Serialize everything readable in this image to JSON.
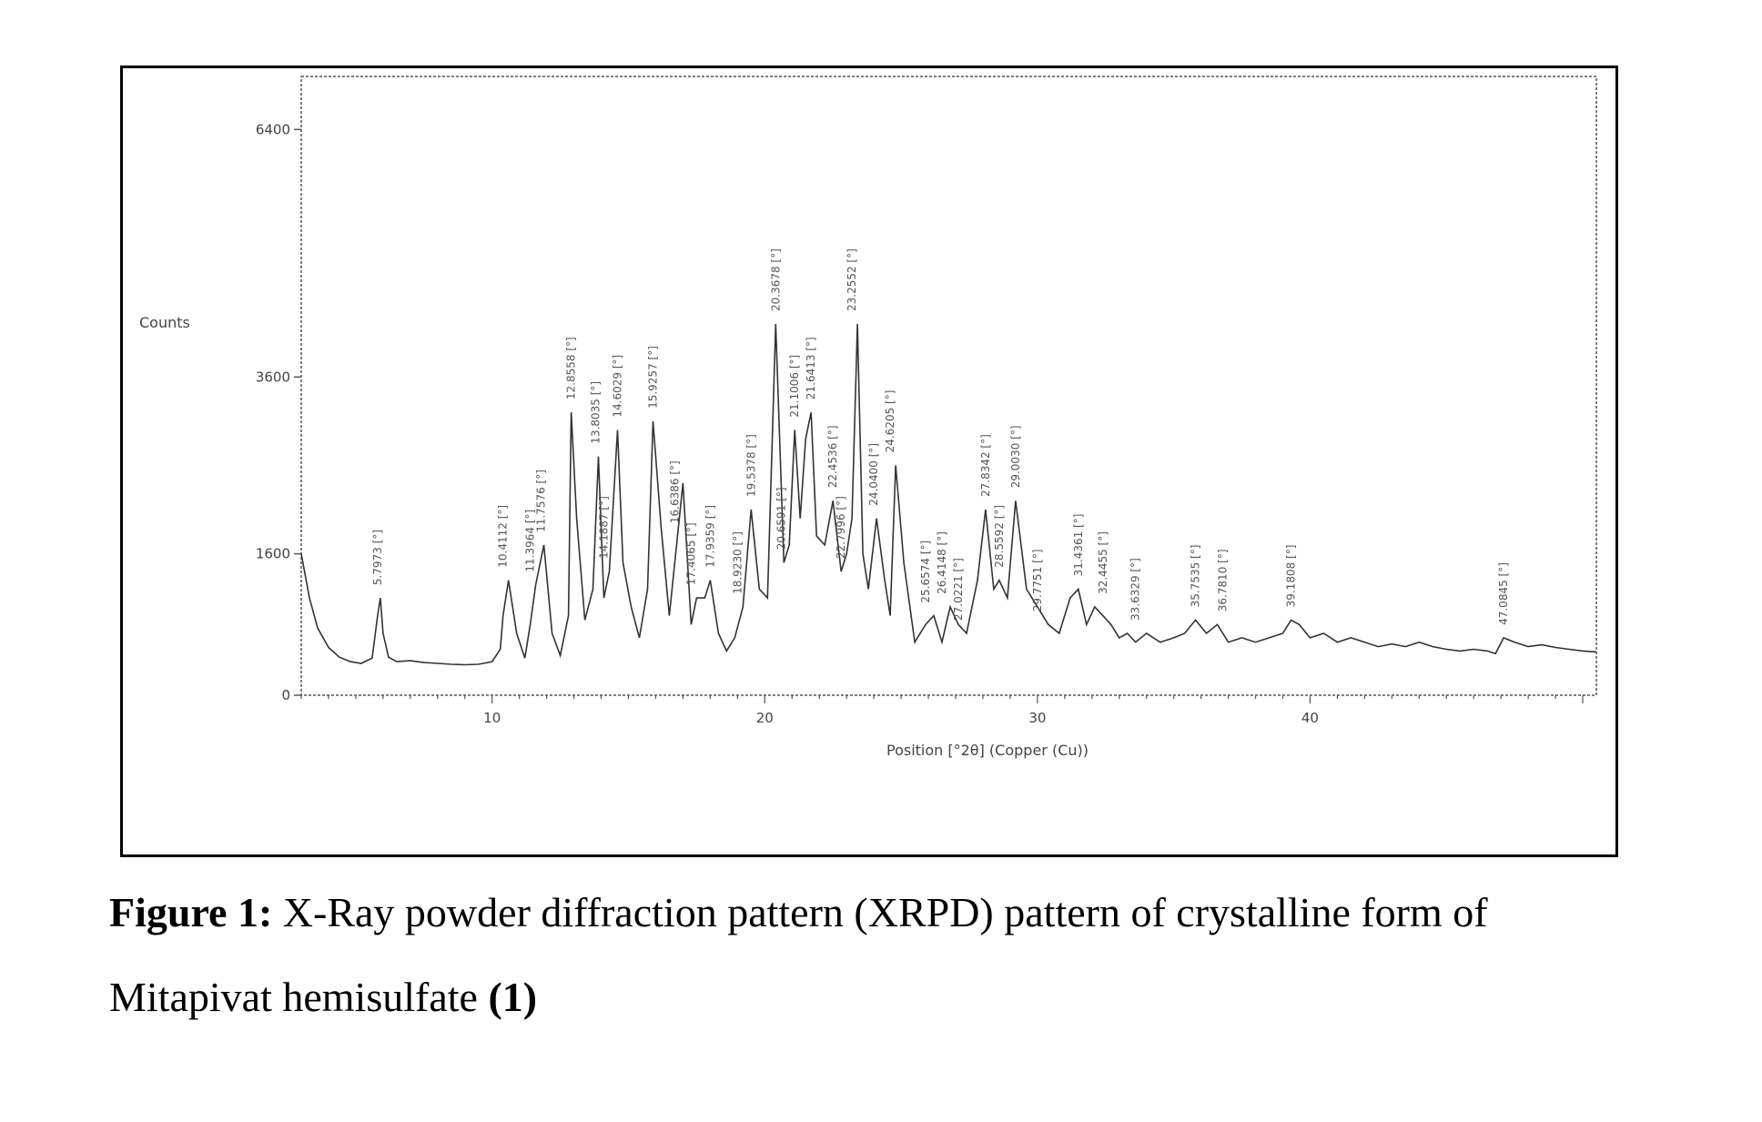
{
  "figure": {
    "caption_label": "Figure 1:",
    "caption_text": " X-Ray powder diffraction pattern (XRPD) pattern of crystalline form of",
    "caption_line2": "Mitapivat hemisulfate ",
    "caption_compound": "(1)"
  },
  "chart_data": {
    "type": "line",
    "title": "",
    "xlabel": "Position [°2θ] (Copper (Cu))",
    "ylabel": "Counts",
    "xlim": [
      3,
      50.5
    ],
    "ylim": [
      0,
      7000
    ],
    "x_ticks": [
      10,
      20,
      30,
      40
    ],
    "x_tick_labels": [
      "10",
      "20",
      "30",
      "40"
    ],
    "y_ticks": [
      0,
      1600,
      3600,
      6400
    ],
    "y_tick_labels": [
      "0",
      "1600",
      "3600",
      "6400"
    ],
    "grid": false,
    "series": [
      {
        "x": [
          3.0,
          3.3,
          3.6,
          4.0,
          4.4,
          4.8,
          5.2,
          5.6,
          5.8,
          5.9,
          6.0,
          6.2,
          6.5,
          7.0,
          7.5,
          8.0,
          8.5,
          9.0,
          9.5,
          10.0,
          10.3,
          10.4,
          10.6,
          10.9,
          11.2,
          11.4,
          11.6,
          11.9,
          12.2,
          12.5,
          12.8,
          12.9,
          13.1,
          13.4,
          13.7,
          13.9,
          14.1,
          14.3,
          14.6,
          14.8,
          15.1,
          15.4,
          15.7,
          15.9,
          16.2,
          16.5,
          16.8,
          17.0,
          17.3,
          17.5,
          17.8,
          18.0,
          18.3,
          18.6,
          18.9,
          19.2,
          19.5,
          19.8,
          20.1,
          20.4,
          20.7,
          20.9,
          21.1,
          21.3,
          21.5,
          21.7,
          21.9,
          22.2,
          22.5,
          22.8,
          23.0,
          23.2,
          23.4,
          23.6,
          23.8,
          24.1,
          24.4,
          24.6,
          24.8,
          25.1,
          25.5,
          25.9,
          26.2,
          26.5,
          26.8,
          27.1,
          27.4,
          27.8,
          28.1,
          28.4,
          28.6,
          28.9,
          29.2,
          29.6,
          30.0,
          30.4,
          30.8,
          31.2,
          31.5,
          31.8,
          32.1,
          32.4,
          32.7,
          33.0,
          33.3,
          33.6,
          34.0,
          34.5,
          35.0,
          35.4,
          35.8,
          36.2,
          36.6,
          37.0,
          37.5,
          38.0,
          38.5,
          39.0,
          39.3,
          39.6,
          40.0,
          40.5,
          41.0,
          41.5,
          42.0,
          42.5,
          43.0,
          43.5,
          44.0,
          44.5,
          45.0,
          45.5,
          46.0,
          46.5,
          46.8,
          47.1,
          47.5,
          48.0,
          48.5,
          49.0,
          49.5,
          50.0,
          50.5
        ],
        "y": [
          1600,
          1100,
          760,
          540,
          430,
          380,
          360,
          420,
          900,
          1100,
          700,
          430,
          380,
          390,
          370,
          360,
          350,
          345,
          350,
          380,
          520,
          900,
          1300,
          700,
          420,
          800,
          1250,
          1700,
          700,
          450,
          900,
          3200,
          2000,
          850,
          1200,
          2700,
          1100,
          1400,
          3000,
          1500,
          1000,
          650,
          1200,
          3100,
          1900,
          900,
          1800,
          2400,
          800,
          1100,
          1100,
          1300,
          700,
          500,
          650,
          1000,
          2100,
          1200,
          1100,
          4200,
          1500,
          1700,
          3000,
          2000,
          2900,
          3200,
          1800,
          1700,
          2200,
          1400,
          1600,
          2000,
          4200,
          1600,
          1200,
          2000,
          1300,
          900,
          2600,
          1500,
          600,
          800,
          900,
          600,
          1000,
          800,
          700,
          1300,
          2100,
          1200,
          1300,
          1100,
          2200,
          1200,
          1000,
          800,
          700,
          1100,
          1200,
          800,
          1000,
          900,
          800,
          650,
          700,
          600,
          700,
          600,
          650,
          700,
          850,
          700,
          800,
          600,
          650,
          600,
          650,
          700,
          850,
          800,
          650,
          700,
          600,
          650,
          600,
          550,
          580,
          550,
          600,
          550,
          520,
          500,
          520,
          500,
          470,
          650,
          600,
          550,
          570,
          540,
          520,
          500,
          490
        ]
      }
    ],
    "peaks": [
      {
        "x": 5.8,
        "y": 1100,
        "label": "5.7973 [°]"
      },
      {
        "x": 10.4,
        "y": 1300,
        "label": "10.4112 [°]"
      },
      {
        "x": 11.4,
        "y": 1250,
        "label": "11.3964 [°]"
      },
      {
        "x": 11.8,
        "y": 1700,
        "label": "11.7576 [°]"
      },
      {
        "x": 12.9,
        "y": 3200,
        "label": "12.8558 [°]"
      },
      {
        "x": 13.8,
        "y": 2700,
        "label": "13.8035 [°]"
      },
      {
        "x": 14.1,
        "y": 1400,
        "label": "14.1887 [°]"
      },
      {
        "x": 14.6,
        "y": 3000,
        "label": "14.6029 [°]"
      },
      {
        "x": 15.9,
        "y": 3100,
        "label": "15.9257 [°]"
      },
      {
        "x": 16.7,
        "y": 1800,
        "label": "16.6386 [°]"
      },
      {
        "x": 17.3,
        "y": 1100,
        "label": "17.4065 [°]"
      },
      {
        "x": 18.0,
        "y": 1300,
        "label": "17.9359 [°]"
      },
      {
        "x": 19.0,
        "y": 1000,
        "label": "18.9230 [°]"
      },
      {
        "x": 19.5,
        "y": 2100,
        "label": "19.5378 [°]"
      },
      {
        "x": 20.4,
        "y": 4200,
        "label": "20.3678 [°]"
      },
      {
        "x": 20.6,
        "y": 1500,
        "label": "20.6591 [°]"
      },
      {
        "x": 21.1,
        "y": 3000,
        "label": "21.1006 [°]"
      },
      {
        "x": 21.7,
        "y": 3200,
        "label": "21.6413 [°]"
      },
      {
        "x": 22.5,
        "y": 2200,
        "label": "22.4536 [°]"
      },
      {
        "x": 22.8,
        "y": 1400,
        "label": "22.7996 [°]"
      },
      {
        "x": 23.2,
        "y": 4200,
        "label": "23.2552 [°]"
      },
      {
        "x": 24.0,
        "y": 2000,
        "label": "24.0400 [°]"
      },
      {
        "x": 24.6,
        "y": 2600,
        "label": "24.6205 [°]"
      },
      {
        "x": 25.9,
        "y": 900,
        "label": "25.6574 [°]"
      },
      {
        "x": 26.5,
        "y": 1000,
        "label": "26.4148 [°]"
      },
      {
        "x": 27.1,
        "y": 700,
        "label": "27.0221 [°]"
      },
      {
        "x": 28.1,
        "y": 2100,
        "label": "27.8342 [°]"
      },
      {
        "x": 28.6,
        "y": 1300,
        "label": "28.5592 [°]"
      },
      {
        "x": 29.2,
        "y": 2200,
        "label": "29.0030 [°]"
      },
      {
        "x": 30.0,
        "y": 800,
        "label": "29.7751 [°]"
      },
      {
        "x": 31.5,
        "y": 1200,
        "label": "31.4361 [°]"
      },
      {
        "x": 32.4,
        "y": 1000,
        "label": "32.4455 [°]"
      },
      {
        "x": 33.6,
        "y": 700,
        "label": "33.6329 [°]"
      },
      {
        "x": 35.8,
        "y": 850,
        "label": "35.7535 [°]"
      },
      {
        "x": 36.8,
        "y": 800,
        "label": "36.7810 [°]"
      },
      {
        "x": 39.3,
        "y": 850,
        "label": "39.1808 [°]"
      },
      {
        "x": 47.1,
        "y": 650,
        "label": "47.0845 [°]"
      }
    ]
  }
}
